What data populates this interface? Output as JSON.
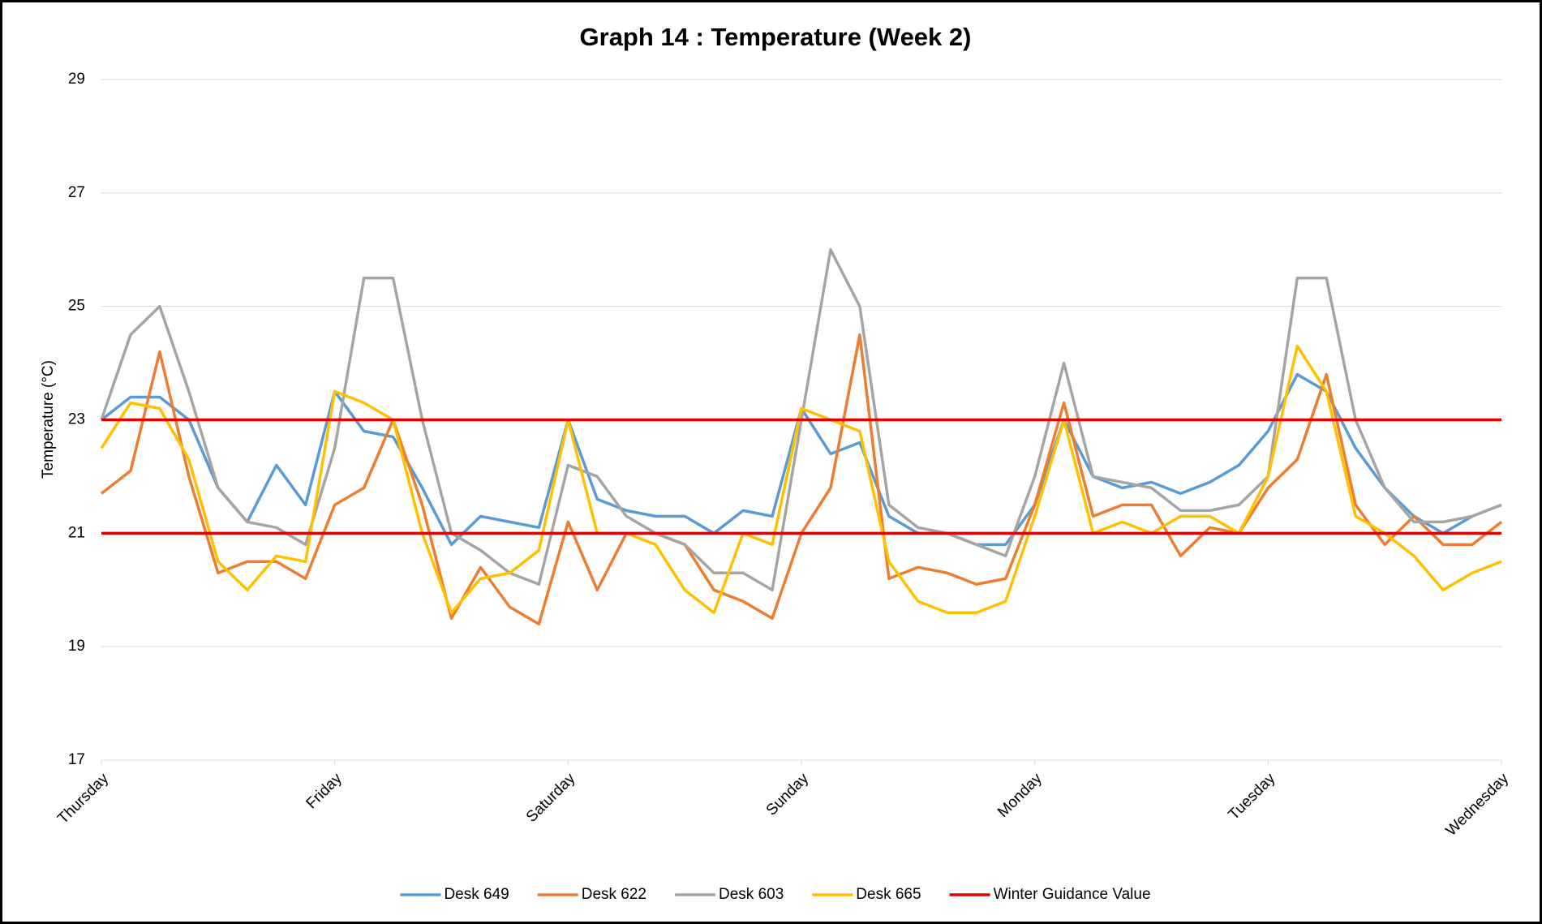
{
  "chart_data": {
    "type": "line",
    "title": "Graph 14 : Temperature (Week 2)",
    "y_label": "Temperature (°C)",
    "x": [
      0,
      0.125,
      0.25,
      0.375,
      0.5,
      0.625,
      0.75,
      0.875,
      1,
      1.125,
      1.25,
      1.375,
      1.5,
      1.625,
      1.75,
      1.875,
      2,
      2.125,
      2.25,
      2.375,
      2.5,
      2.625,
      2.75,
      2.875,
      3,
      3.125,
      3.25,
      3.375,
      3.5,
      3.625,
      3.75,
      3.875,
      4,
      4.125,
      4.25,
      4.375,
      4.5,
      4.625,
      4.75,
      4.875,
      5,
      5.125,
      5.25,
      5.375,
      5.5,
      5.625,
      5.75,
      5.875,
      6
    ],
    "xlim": [
      0,
      6
    ],
    "xticks": [
      {
        "value": 0,
        "label": "Thursday"
      },
      {
        "value": 1,
        "label": "Friday"
      },
      {
        "value": 2,
        "label": "Saturday"
      },
      {
        "value": 3,
        "label": "Sunday"
      },
      {
        "value": 4,
        "label": "Monday"
      },
      {
        "value": 5,
        "label": "Tuesday"
      },
      {
        "value": 6,
        "label": "Wednesday"
      }
    ],
    "ylim": [
      17,
      29
    ],
    "yticks": [
      17,
      19,
      21,
      23,
      25,
      27,
      29
    ],
    "grid": true,
    "series": [
      {
        "name": "Desk 649",
        "color": "#5b9bd5",
        "values": [
          23.0,
          23.4,
          23.4,
          23.0,
          21.8,
          21.2,
          22.2,
          21.5,
          23.5,
          22.8,
          22.7,
          21.8,
          20.8,
          21.3,
          21.2,
          21.1,
          23.0,
          21.6,
          21.4,
          21.3,
          21.3,
          21.0,
          21.4,
          21.3,
          23.2,
          22.4,
          22.6,
          21.3,
          21.0,
          21.0,
          20.8,
          20.8,
          21.5,
          23.0,
          22.0,
          21.8,
          21.9,
          21.7,
          21.9,
          22.2,
          22.8,
          23.8,
          23.5,
          22.5,
          21.8,
          21.3,
          21.0,
          21.3,
          21.5
        ]
      },
      {
        "name": "Desk 622",
        "color": "#ed7d31",
        "values": [
          21.7,
          22.1,
          24.2,
          22.0,
          20.3,
          20.5,
          20.5,
          20.2,
          21.5,
          21.8,
          23.0,
          21.5,
          19.5,
          20.4,
          19.7,
          19.4,
          21.2,
          20.0,
          21.0,
          21.0,
          20.8,
          20.0,
          19.8,
          19.5,
          21.0,
          21.8,
          24.5,
          20.2,
          20.4,
          20.3,
          20.1,
          20.2,
          21.5,
          23.3,
          21.3,
          21.5,
          21.5,
          20.6,
          21.1,
          21.0,
          21.8,
          22.3,
          23.8,
          21.5,
          20.8,
          21.3,
          20.8,
          20.8,
          21.2
        ]
      },
      {
        "name": "Desk 603",
        "color": "#a5a5a5",
        "values": [
          23.0,
          24.5,
          25.0,
          23.5,
          21.8,
          21.2,
          21.1,
          20.8,
          22.5,
          25.5,
          25.5,
          23.0,
          21.0,
          20.7,
          20.3,
          20.1,
          22.2,
          22.0,
          21.3,
          21.0,
          20.8,
          20.3,
          20.3,
          20.0,
          23.0,
          26.0,
          25.0,
          21.5,
          21.1,
          21.0,
          20.8,
          20.6,
          22.0,
          24.0,
          22.0,
          21.9,
          21.8,
          21.4,
          21.4,
          21.5,
          22.0,
          25.5,
          25.5,
          23.0,
          21.8,
          21.2,
          21.2,
          21.3,
          21.5
        ]
      },
      {
        "name": "Desk 665",
        "color": "#ffc000",
        "values": [
          22.5,
          23.3,
          23.2,
          22.3,
          20.5,
          20.0,
          20.6,
          20.5,
          23.5,
          23.3,
          23.0,
          21.0,
          19.6,
          20.2,
          20.3,
          20.7,
          23.0,
          21.0,
          21.0,
          20.8,
          20.0,
          19.6,
          21.0,
          20.8,
          23.2,
          23.0,
          22.8,
          20.5,
          19.8,
          19.6,
          19.6,
          19.8,
          21.3,
          23.0,
          21.0,
          21.2,
          21.0,
          21.3,
          21.3,
          21.0,
          22.0,
          24.3,
          23.5,
          21.3,
          21.0,
          20.6,
          20.0,
          20.3,
          20.5
        ]
      }
    ],
    "guidance": {
      "name": "Winter Guidance Value",
      "color": "#e00000",
      "values": [
        21,
        23
      ]
    }
  }
}
